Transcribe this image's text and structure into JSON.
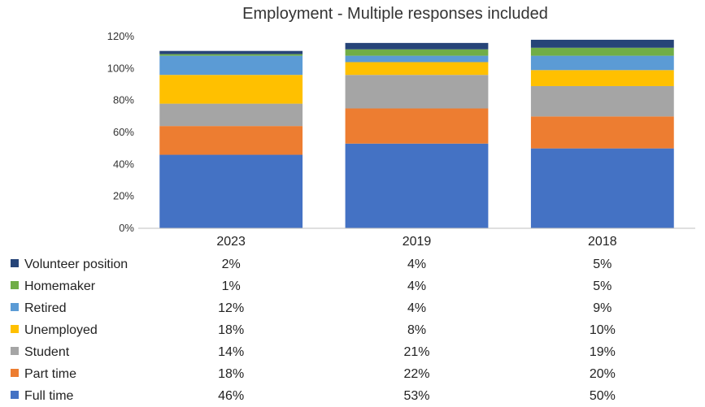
{
  "chart_data": {
    "type": "bar",
    "stacked": true,
    "title": "Employment - Multiple responses included",
    "categories": [
      "2023",
      "2019",
      "2018"
    ],
    "ylim": [
      0,
      120
    ],
    "yticks": [
      "0%",
      "20%",
      "40%",
      "60%",
      "80%",
      "100%",
      "120%"
    ],
    "grid": false,
    "legend_position": "data-table-left",
    "series": [
      {
        "name": "Full time",
        "color": "#4472C4",
        "values": [
          46,
          53,
          50
        ],
        "labels": [
          "46%",
          "53%",
          "50%"
        ]
      },
      {
        "name": "Part time",
        "color": "#ED7D31",
        "values": [
          18,
          22,
          20
        ],
        "labels": [
          "18%",
          "22%",
          "20%"
        ]
      },
      {
        "name": "Student",
        "color": "#A5A5A5",
        "values": [
          14,
          21,
          19
        ],
        "labels": [
          "14%",
          "21%",
          "19%"
        ]
      },
      {
        "name": "Unemployed",
        "color": "#FFC000",
        "values": [
          18,
          8,
          10
        ],
        "labels": [
          "18%",
          "8%",
          "10%"
        ]
      },
      {
        "name": "Retired",
        "color": "#5B9BD5",
        "values": [
          12,
          4,
          9
        ],
        "labels": [
          "12%",
          "4%",
          "9%"
        ]
      },
      {
        "name": "Homemaker",
        "color": "#70AD47",
        "values": [
          1,
          4,
          5
        ],
        "labels": [
          "1%",
          "4%",
          "5%"
        ]
      },
      {
        "name": "Volunteer position",
        "color": "#264478",
        "values": [
          2,
          4,
          5
        ],
        "labels": [
          "2%",
          "4%",
          "5%"
        ]
      }
    ]
  }
}
